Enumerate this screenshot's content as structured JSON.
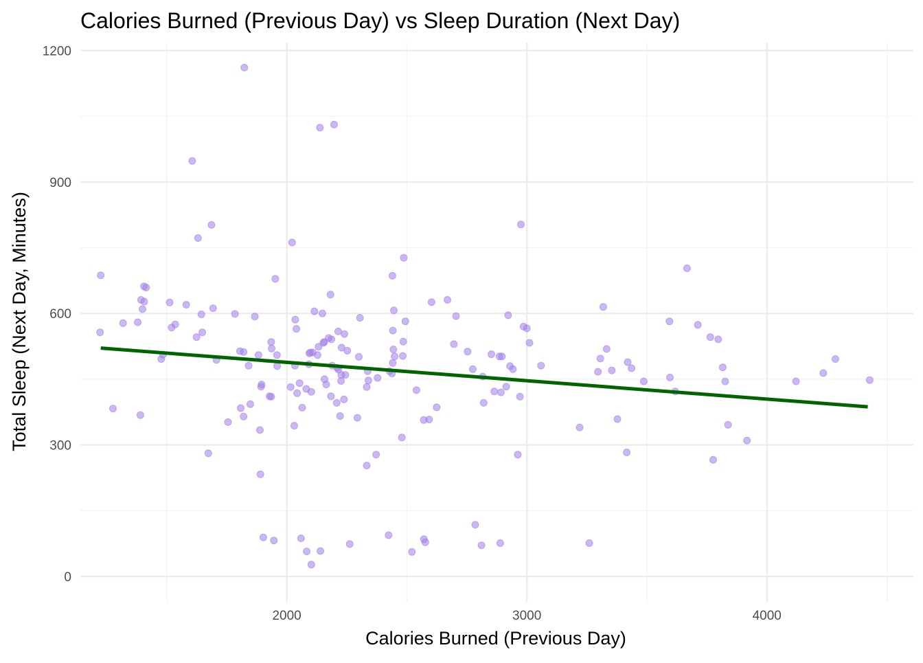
{
  "chart_data": {
    "type": "scatter",
    "title": "Calories Burned (Previous Day) vs Sleep Duration (Next Day)",
    "xlabel": "Calories Burned (Previous Day)",
    "ylabel": "Total Sleep (Next Day, Minutes)",
    "xlim": [
      1140,
      4610
    ],
    "ylim": [
      -58,
      1218
    ],
    "x_ticks": [
      2000,
      3000,
      4000
    ],
    "x_tick_labels": [
      "2000",
      "3000",
      "4000"
    ],
    "y_ticks": [
      0,
      300,
      600,
      900,
      1200
    ],
    "y_tick_labels": [
      "0",
      "300",
      "600",
      "900",
      "1200"
    ],
    "grid": true,
    "legend": "none",
    "point_color": "#a07ee8",
    "trend_color": "#006400",
    "trend_line": {
      "x": [
        1225,
        4420
      ],
      "y": [
        521,
        387
      ]
    },
    "points": [
      [
        1225,
        687
      ],
      [
        1222,
        557
      ],
      [
        1276,
        383
      ],
      [
        1318,
        578
      ],
      [
        1379,
        580
      ],
      [
        1390,
        368
      ],
      [
        1393,
        631
      ],
      [
        1399,
        610
      ],
      [
        1405,
        662
      ],
      [
        1406,
        627
      ],
      [
        1414,
        659
      ],
      [
        1477,
        496
      ],
      [
        1484,
        506
      ],
      [
        1512,
        625
      ],
      [
        1520,
        568
      ],
      [
        1535,
        575
      ],
      [
        1581,
        620
      ],
      [
        1606,
        948
      ],
      [
        1624,
        546
      ],
      [
        1630,
        772
      ],
      [
        1644,
        598
      ],
      [
        1648,
        557
      ],
      [
        1673,
        281
      ],
      [
        1686,
        802
      ],
      [
        1693,
        612
      ],
      [
        1707,
        494
      ],
      [
        1755,
        352
      ],
      [
        1784,
        599
      ],
      [
        1805,
        514
      ],
      [
        1808,
        384
      ],
      [
        1820,
        365
      ],
      [
        1820,
        512
      ],
      [
        1823,
        1161
      ],
      [
        1841,
        481
      ],
      [
        1848,
        393
      ],
      [
        1867,
        593
      ],
      [
        1882,
        505
      ],
      [
        1888,
        334
      ],
      [
        1890,
        233
      ],
      [
        1893,
        433
      ],
      [
        1895,
        438
      ],
      [
        1902,
        89
      ],
      [
        1928,
        411
      ],
      [
        1935,
        410
      ],
      [
        1935,
        535
      ],
      [
        1937,
        520
      ],
      [
        1946,
        82
      ],
      [
        1952,
        679
      ],
      [
        1959,
        505
      ],
      [
        1960,
        480
      ],
      [
        2016,
        432
      ],
      [
        2022,
        762
      ],
      [
        2031,
        344
      ],
      [
        2034,
        481
      ],
      [
        2035,
        586
      ],
      [
        2040,
        565
      ],
      [
        2043,
        418
      ],
      [
        2053,
        441
      ],
      [
        2059,
        87
      ],
      [
        2064,
        385
      ],
      [
        2081,
        428
      ],
      [
        2083,
        57
      ],
      [
        2092,
        484
      ],
      [
        2094,
        509
      ],
      [
        2098,
        511
      ],
      [
        2102,
        421
      ],
      [
        2102,
        27
      ],
      [
        2108,
        511
      ],
      [
        2115,
        605
      ],
      [
        2128,
        505
      ],
      [
        2132,
        524
      ],
      [
        2138,
        1024
      ],
      [
        2140,
        58
      ],
      [
        2148,
        600
      ],
      [
        2152,
        533
      ],
      [
        2156,
        535
      ],
      [
        2157,
        450
      ],
      [
        2164,
        438
      ],
      [
        2174,
        544
      ],
      [
        2182,
        643
      ],
      [
        2184,
        411
      ],
      [
        2186,
        541
      ],
      [
        2189,
        481
      ],
      [
        2197,
        1031
      ],
      [
        2208,
        396
      ],
      [
        2210,
        476
      ],
      [
        2214,
        559
      ],
      [
        2215,
        472
      ],
      [
        2222,
        366
      ],
      [
        2226,
        446
      ],
      [
        2227,
        460
      ],
      [
        2228,
        522
      ],
      [
        2238,
        404
      ],
      [
        2240,
        553
      ],
      [
        2244,
        460
      ],
      [
        2252,
        515
      ],
      [
        2262,
        74
      ],
      [
        2294,
        362
      ],
      [
        2300,
        501
      ],
      [
        2305,
        590
      ],
      [
        2333,
        253
      ],
      [
        2333,
        432
      ],
      [
        2337,
        468
      ],
      [
        2340,
        447
      ],
      [
        2372,
        278
      ],
      [
        2378,
        453
      ],
      [
        2424,
        94
      ],
      [
        2428,
        468
      ],
      [
        2438,
        463
      ],
      [
        2440,
        686
      ],
      [
        2441,
        487
      ],
      [
        2442,
        561
      ],
      [
        2444,
        518
      ],
      [
        2446,
        607
      ],
      [
        2449,
        502
      ],
      [
        2479,
        317
      ],
      [
        2483,
        503
      ],
      [
        2485,
        536
      ],
      [
        2487,
        727
      ],
      [
        2494,
        582
      ],
      [
        2521,
        56
      ],
      [
        2540,
        425
      ],
      [
        2570,
        357
      ],
      [
        2571,
        85
      ],
      [
        2577,
        78
      ],
      [
        2593,
        358
      ],
      [
        2603,
        626
      ],
      [
        2624,
        386
      ],
      [
        2669,
        631
      ],
      [
        2696,
        530
      ],
      [
        2705,
        594
      ],
      [
        2753,
        513
      ],
      [
        2775,
        473
      ],
      [
        2785,
        118
      ],
      [
        2811,
        71
      ],
      [
        2816,
        456
      ],
      [
        2820,
        396
      ],
      [
        2852,
        507
      ],
      [
        2864,
        422
      ],
      [
        2886,
        502
      ],
      [
        2889,
        76
      ],
      [
        2892,
        420
      ],
      [
        2896,
        502
      ],
      [
        2914,
        433
      ],
      [
        2922,
        596
      ],
      [
        2930,
        480
      ],
      [
        2942,
        473
      ],
      [
        2962,
        278
      ],
      [
        2971,
        410
      ],
      [
        2975,
        803
      ],
      [
        2986,
        570
      ],
      [
        3000,
        566
      ],
      [
        3011,
        533
      ],
      [
        3059,
        481
      ],
      [
        3220,
        340
      ],
      [
        3260,
        76
      ],
      [
        3296,
        467
      ],
      [
        3306,
        497
      ],
      [
        3318,
        615
      ],
      [
        3332,
        519
      ],
      [
        3354,
        470
      ],
      [
        3377,
        359
      ],
      [
        3416,
        283
      ],
      [
        3420,
        489
      ],
      [
        3436,
        475
      ],
      [
        3487,
        445
      ],
      [
        3594,
        582
      ],
      [
        3596,
        454
      ],
      [
        3618,
        422
      ],
      [
        3667,
        703
      ],
      [
        3712,
        574
      ],
      [
        3764,
        546
      ],
      [
        3776,
        266
      ],
      [
        3797,
        541
      ],
      [
        3816,
        477
      ],
      [
        3826,
        445
      ],
      [
        3838,
        346
      ],
      [
        3917,
        310
      ],
      [
        4121,
        445
      ],
      [
        4235,
        464
      ],
      [
        4285,
        496
      ],
      [
        4428,
        448
      ]
    ]
  }
}
